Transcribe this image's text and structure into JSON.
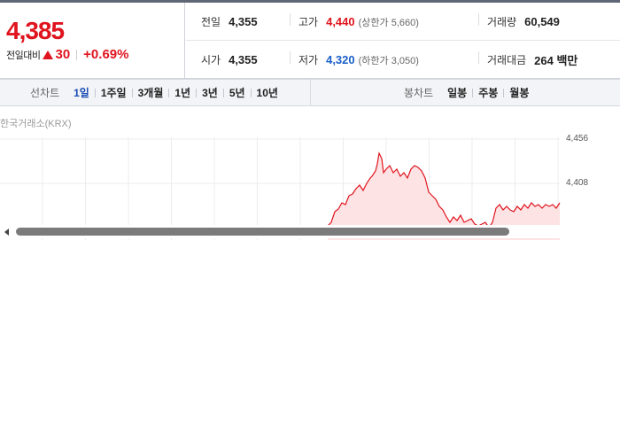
{
  "summary": {
    "price": "4,385",
    "change_label": "전일대비",
    "change_amount": "30",
    "change_percent": "+0.69%"
  },
  "stats": {
    "prev_close": {
      "label": "전일",
      "value": "4,355"
    },
    "high": {
      "label": "고가",
      "value": "4,440",
      "sub": "(상한가 5,660)"
    },
    "volume": {
      "label": "거래량",
      "value": "60,549"
    },
    "open": {
      "label": "시가",
      "value": "4,355"
    },
    "low": {
      "label": "저가",
      "value": "4,320",
      "sub": "(하한가 3,050)"
    },
    "amount": {
      "label": "거래대금",
      "value": "264 백만"
    }
  },
  "tabs": {
    "line_title": "선차트",
    "line_tabs": [
      "1일",
      "1주일",
      "3개월",
      "1년",
      "3년",
      "5년",
      "10년"
    ],
    "active": "1일",
    "candle_title": "봉차트",
    "candle_tabs": [
      "일봉",
      "주봉",
      "월봉"
    ]
  },
  "chart": {
    "source": "한국거래소(KRX)",
    "y_ticks": [
      "4,456",
      "4,408"
    ],
    "line_color": "#e0141e",
    "fill_color": "#fde3e4"
  }
}
